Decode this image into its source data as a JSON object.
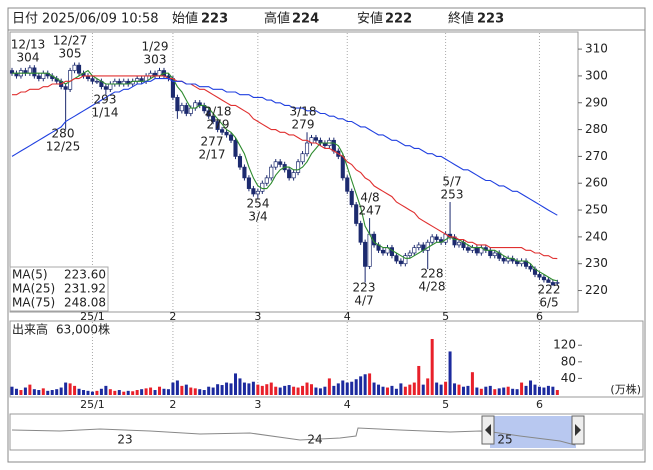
{
  "header": {
    "fields": [
      {
        "label": "日付",
        "value": "2025/06/09 10:58",
        "color": "#222222"
      },
      {
        "label": "始値",
        "value": 223,
        "color": "#222222"
      },
      {
        "label": "高値",
        "value": 224,
        "color": "#e02020"
      },
      {
        "label": "安値",
        "value": 222,
        "color": "#1a9a1a"
      },
      {
        "label": "終値",
        "value": 223,
        "color": "#222222"
      }
    ]
  },
  "chart_data": {
    "type": "candlestick",
    "categories": [
      null,
      null,
      null,
      null,
      null,
      null,
      null,
      null,
      null,
      null,
      null,
      null,
      null,
      null,
      null,
      null,
      null,
      null,
      "25/1",
      null,
      null,
      null,
      null,
      null,
      null,
      null,
      null,
      null,
      null,
      null,
      null,
      null,
      null,
      null,
      null,
      null,
      "2",
      null,
      null,
      null,
      null,
      null,
      null,
      null,
      null,
      null,
      null,
      null,
      null,
      null,
      null,
      null,
      null,
      null,
      null,
      "3",
      null,
      null,
      null,
      null,
      null,
      null,
      null,
      null,
      null,
      null,
      null,
      null,
      null,
      null,
      null,
      null,
      null,
      null,
      null,
      "4",
      null,
      null,
      null,
      null,
      null,
      null,
      null,
      null,
      null,
      null,
      null,
      null,
      null,
      null,
      null,
      null,
      null,
      null,
      null,
      null,
      null,
      "5",
      null,
      null,
      null,
      null,
      null,
      null,
      null,
      null,
      null,
      null,
      null,
      null,
      null,
      null,
      null,
      null,
      null,
      null,
      null,
      null,
      "6",
      null,
      null,
      null,
      null
    ],
    "ohlc": [
      [
        302,
        303,
        300,
        301
      ],
      [
        301,
        302,
        299,
        300
      ],
      [
        300,
        303,
        299,
        302
      ],
      [
        302,
        303,
        300,
        301
      ],
      [
        301,
        304,
        300,
        303
      ],
      [
        303,
        304,
        299,
        300
      ],
      [
        300,
        301,
        298,
        299
      ],
      [
        299,
        302,
        298,
        301
      ],
      [
        301,
        302,
        299,
        300
      ],
      [
        300,
        301,
        298,
        299
      ],
      [
        299,
        300,
        297,
        298
      ],
      [
        298,
        299,
        295,
        296
      ],
      [
        296,
        297,
        280,
        295
      ],
      [
        295,
        303,
        294,
        302
      ],
      [
        302,
        305,
        301,
        304
      ],
      [
        304,
        305,
        300,
        301
      ],
      [
        301,
        302,
        299,
        300
      ],
      [
        300,
        301,
        298,
        299
      ],
      [
        299,
        300,
        297,
        298
      ],
      [
        298,
        299,
        297,
        298
      ],
      [
        298,
        299,
        295,
        296
      ],
      [
        296,
        297,
        293,
        295
      ],
      [
        295,
        298,
        294,
        297
      ],
      [
        297,
        299,
        296,
        298
      ],
      [
        298,
        299,
        296,
        297
      ],
      [
        297,
        299,
        296,
        298
      ],
      [
        298,
        299,
        296,
        297
      ],
      [
        297,
        299,
        296,
        298
      ],
      [
        298,
        300,
        297,
        299
      ],
      [
        299,
        300,
        297,
        298
      ],
      [
        298,
        301,
        297,
        300
      ],
      [
        300,
        302,
        299,
        301
      ],
      [
        301,
        302,
        299,
        300
      ],
      [
        300,
        303,
        299,
        302
      ],
      [
        302,
        303,
        299,
        300
      ],
      [
        300,
        301,
        298,
        299
      ],
      [
        299,
        300,
        291,
        292
      ],
      [
        292,
        293,
        284,
        287
      ],
      [
        287,
        290,
        286,
        289
      ],
      [
        289,
        290,
        285,
        286
      ],
      [
        286,
        289,
        285,
        288
      ],
      [
        288,
        291,
        287,
        290
      ],
      [
        290,
        291,
        288,
        289
      ],
      [
        289,
        290,
        286,
        287
      ],
      [
        287,
        288,
        284,
        285
      ],
      [
        285,
        286,
        282,
        283
      ],
      [
        283,
        284,
        279,
        280
      ],
      [
        280,
        281,
        278,
        279
      ],
      [
        279,
        280,
        277,
        278
      ],
      [
        278,
        279,
        275,
        276
      ],
      [
        276,
        277,
        269,
        270
      ],
      [
        270,
        271,
        265,
        266
      ],
      [
        266,
        267,
        261,
        262
      ],
      [
        262,
        263,
        257,
        258
      ],
      [
        258,
        259,
        255,
        256
      ],
      [
        256,
        258,
        254,
        257
      ],
      [
        257,
        261,
        256,
        260
      ],
      [
        260,
        263,
        259,
        262
      ],
      [
        262,
        267,
        261,
        266
      ],
      [
        266,
        269,
        265,
        268
      ],
      [
        268,
        269,
        266,
        267
      ],
      [
        267,
        268,
        264,
        265
      ],
      [
        265,
        266,
        261,
        262
      ],
      [
        262,
        265,
        261,
        264
      ],
      [
        264,
        269,
        263,
        268
      ],
      [
        268,
        272,
        267,
        271
      ],
      [
        271,
        279,
        270,
        275
      ],
      [
        275,
        278,
        274,
        277
      ],
      [
        277,
        278,
        275,
        276
      ],
      [
        276,
        277,
        274,
        275
      ],
      [
        275,
        276,
        273,
        274
      ],
      [
        274,
        277,
        273,
        276
      ],
      [
        276,
        277,
        271,
        272
      ],
      [
        272,
        273,
        269,
        270
      ],
      [
        270,
        271,
        261,
        262
      ],
      [
        262,
        263,
        256,
        257
      ],
      [
        257,
        258,
        251,
        252
      ],
      [
        252,
        253,
        244,
        245
      ],
      [
        245,
        246,
        237,
        238
      ],
      [
        238,
        239,
        223,
        229
      ],
      [
        229,
        247,
        228,
        241
      ],
      [
        241,
        242,
        236,
        237
      ],
      [
        237,
        238,
        234,
        235
      ],
      [
        235,
        236,
        233,
        234
      ],
      [
        234,
        237,
        233,
        236
      ],
      [
        236,
        237,
        232,
        233
      ],
      [
        233,
        234,
        230,
        231
      ],
      [
        231,
        232,
        229,
        230
      ],
      [
        230,
        234,
        229,
        233
      ],
      [
        233,
        235,
        232,
        234
      ],
      [
        234,
        237,
        233,
        236
      ],
      [
        236,
        238,
        235,
        237
      ],
      [
        237,
        238,
        234,
        235
      ],
      [
        235,
        239,
        228,
        238
      ],
      [
        238,
        241,
        237,
        240
      ],
      [
        240,
        241,
        238,
        239
      ],
      [
        239,
        240,
        237,
        238
      ],
      [
        238,
        242,
        237,
        241
      ],
      [
        241,
        253,
        239,
        240
      ],
      [
        240,
        241,
        236,
        237
      ],
      [
        237,
        239,
        236,
        238
      ],
      [
        238,
        239,
        235,
        236
      ],
      [
        236,
        237,
        234,
        235
      ],
      [
        235,
        237,
        234,
        236
      ],
      [
        236,
        237,
        233,
        234
      ],
      [
        234,
        237,
        233,
        236
      ],
      [
        236,
        237,
        234,
        235
      ],
      [
        235,
        236,
        232,
        233
      ],
      [
        233,
        235,
        232,
        234
      ],
      [
        234,
        235,
        231,
        232
      ],
      [
        232,
        233,
        230,
        231
      ],
      [
        231,
        233,
        230,
        232
      ],
      [
        232,
        233,
        230,
        231
      ],
      [
        231,
        232,
        229,
        230
      ],
      [
        230,
        232,
        229,
        231
      ],
      [
        231,
        232,
        228,
        229
      ],
      [
        229,
        230,
        227,
        228
      ],
      [
        228,
        229,
        225,
        226
      ],
      [
        226,
        227,
        224,
        225
      ],
      [
        225,
        226,
        223,
        224
      ],
      [
        224,
        225,
        223,
        223
      ],
      [
        223,
        224,
        222,
        222
      ],
      [
        223,
        224,
        222,
        223
      ]
    ],
    "up_color": "#ffffff",
    "down_color": "#1c2a6e",
    "ylim": [
      212,
      316
    ],
    "yticks": [
      220,
      230,
      240,
      250,
      260,
      270,
      280,
      290,
      300,
      310
    ],
    "series": [
      {
        "name": "MA(5)",
        "color": "#2e8b2e",
        "last_label": "223.60",
        "values": [
          301,
          301,
          301,
          301,
          301,
          301,
          301,
          301,
          301,
          300,
          299,
          298,
          297,
          298,
          299,
          300,
          301,
          302,
          300,
          299,
          298,
          297,
          297,
          297,
          297,
          297,
          297,
          298,
          298,
          298,
          298,
          299,
          300,
          300,
          301,
          301,
          299,
          296,
          294,
          291,
          288,
          288,
          289,
          289,
          288,
          286,
          284,
          282,
          280,
          279,
          277,
          274,
          271,
          266,
          262,
          259,
          258,
          258,
          260,
          263,
          265,
          266,
          266,
          265,
          265,
          266,
          268,
          271,
          273,
          275,
          275,
          275,
          275,
          274,
          271,
          266,
          261,
          256,
          251,
          244,
          241,
          238,
          237,
          236,
          236,
          235,
          234,
          233,
          232,
          232,
          233,
          234,
          235,
          236,
          237,
          238,
          238,
          239,
          240,
          239,
          239,
          238,
          237,
          236,
          236,
          236,
          235,
          235,
          235,
          234,
          233,
          232,
          232,
          231,
          231,
          231,
          230,
          228,
          227,
          226,
          225,
          224,
          223.6
        ]
      },
      {
        "name": "MA(25)",
        "color": "#e03030",
        "last_label": "231.92",
        "values": [
          293,
          293,
          294,
          294,
          295,
          295,
          295,
          296,
          296,
          297,
          297,
          297,
          298,
          298,
          299,
          299,
          300,
          300,
          300,
          300,
          300,
          300,
          300,
          300,
          300,
          300,
          300,
          300,
          300,
          300,
          300,
          300,
          300,
          300,
          300,
          299,
          299,
          298,
          298,
          297,
          297,
          296,
          295,
          295,
          294,
          293,
          292,
          291,
          290,
          289,
          289,
          288,
          287,
          286,
          284,
          283,
          282,
          281,
          280,
          280,
          279,
          279,
          278,
          278,
          277,
          276,
          276,
          275,
          275,
          274,
          273,
          273,
          272,
          271,
          270,
          268,
          267,
          265,
          264,
          262,
          261,
          259,
          258,
          257,
          256,
          255,
          253,
          252,
          251,
          250,
          249,
          247,
          246,
          245,
          244,
          243,
          242,
          241,
          240,
          240,
          239,
          239,
          238,
          238,
          237,
          237,
          237,
          236,
          236,
          236,
          236,
          236,
          236,
          236,
          236,
          235,
          235,
          234,
          234,
          233,
          233,
          232,
          231.92
        ]
      },
      {
        "name": "MA(75)",
        "color": "#2040e0",
        "last_label": "248.08",
        "values": [
          270,
          271,
          272,
          273,
          274,
          275,
          276,
          277,
          278,
          279,
          280,
          281,
          283,
          284,
          285,
          286,
          287,
          288,
          289,
          290,
          291,
          292,
          293,
          294,
          294,
          295,
          295,
          296,
          297,
          297,
          298,
          298,
          299,
          299,
          299,
          299,
          298,
          298,
          298,
          297,
          297,
          297,
          296,
          296,
          296,
          295,
          295,
          295,
          294,
          294,
          294,
          293,
          293,
          293,
          292,
          292,
          292,
          291,
          291,
          290,
          290,
          289,
          289,
          288,
          288,
          288,
          287,
          287,
          287,
          286,
          286,
          285,
          285,
          284,
          284,
          283,
          283,
          282,
          281,
          281,
          280,
          279,
          278,
          278,
          277,
          276,
          276,
          275,
          274,
          274,
          273,
          273,
          272,
          271,
          271,
          270,
          270,
          269,
          268,
          267,
          266,
          265,
          265,
          264,
          263,
          262,
          261,
          261,
          260,
          259,
          259,
          258,
          257,
          257,
          256,
          255,
          254,
          253,
          252,
          251,
          250,
          249,
          248.08
        ]
      }
    ],
    "annotations": [
      {
        "date": "12/13",
        "price": 304,
        "position": "above"
      },
      {
        "date": "12/27",
        "price": 305,
        "position": "above"
      },
      {
        "date": "1/29",
        "price": 303,
        "position": "above"
      },
      {
        "date": "1/14",
        "price": 293,
        "position": "below"
      },
      {
        "date": "12/25",
        "price": 280,
        "position": "below"
      },
      {
        "date": "2/18",
        "price": 279,
        "position": "above"
      },
      {
        "date": "2/17",
        "price": 277,
        "position": "below"
      },
      {
        "date": "3/4",
        "price": 254,
        "position": "below"
      },
      {
        "date": "3/18",
        "price": 279,
        "position": "above"
      },
      {
        "date": "4/8",
        "price": 247,
        "position": "above"
      },
      {
        "date": "4/7",
        "price": 223,
        "position": "below"
      },
      {
        "date": "5/7",
        "price": 253,
        "position": "above"
      },
      {
        "date": "4/28",
        "price": 228,
        "position": "below"
      },
      {
        "date": "6/5",
        "price": 222,
        "position": "below"
      }
    ],
    "volume": {
      "title": "出来高",
      "value_text": "63,000株",
      "unit": "(万株)",
      "up_color": "#e8202a",
      "down_color": "#1c2a9e",
      "ylim": [
        0,
        176
      ],
      "yticks": [
        40,
        80,
        120
      ],
      "values": [
        20,
        15,
        12,
        18,
        25,
        14,
        12,
        16,
        10,
        12,
        14,
        18,
        30,
        28,
        22,
        15,
        12,
        10,
        8,
        10,
        15,
        22,
        14,
        10,
        12,
        8,
        10,
        9,
        12,
        14,
        16,
        18,
        12,
        20,
        15,
        14,
        30,
        35,
        22,
        25,
        18,
        16,
        14,
        12,
        20,
        18,
        26,
        24,
        30,
        28,
        52,
        40,
        30,
        28,
        32,
        25,
        22,
        26,
        30,
        20,
        18,
        22,
        24,
        20,
        18,
        22,
        30,
        26,
        18,
        16,
        20,
        40,
        22,
        28,
        35,
        30,
        32,
        38,
        45,
        50,
        52,
        30,
        25,
        20,
        18,
        22,
        15,
        28,
        20,
        25,
        30,
        70,
        25,
        40,
        135,
        30,
        25,
        32,
        105,
        28,
        25,
        20,
        22,
        55,
        18,
        15,
        20,
        22,
        14,
        16,
        18,
        20,
        15,
        14,
        30,
        22,
        35,
        25,
        20,
        18,
        22,
        20,
        12
      ]
    },
    "navigator": {
      "labels": [
        "23",
        "24",
        "25"
      ]
    }
  }
}
